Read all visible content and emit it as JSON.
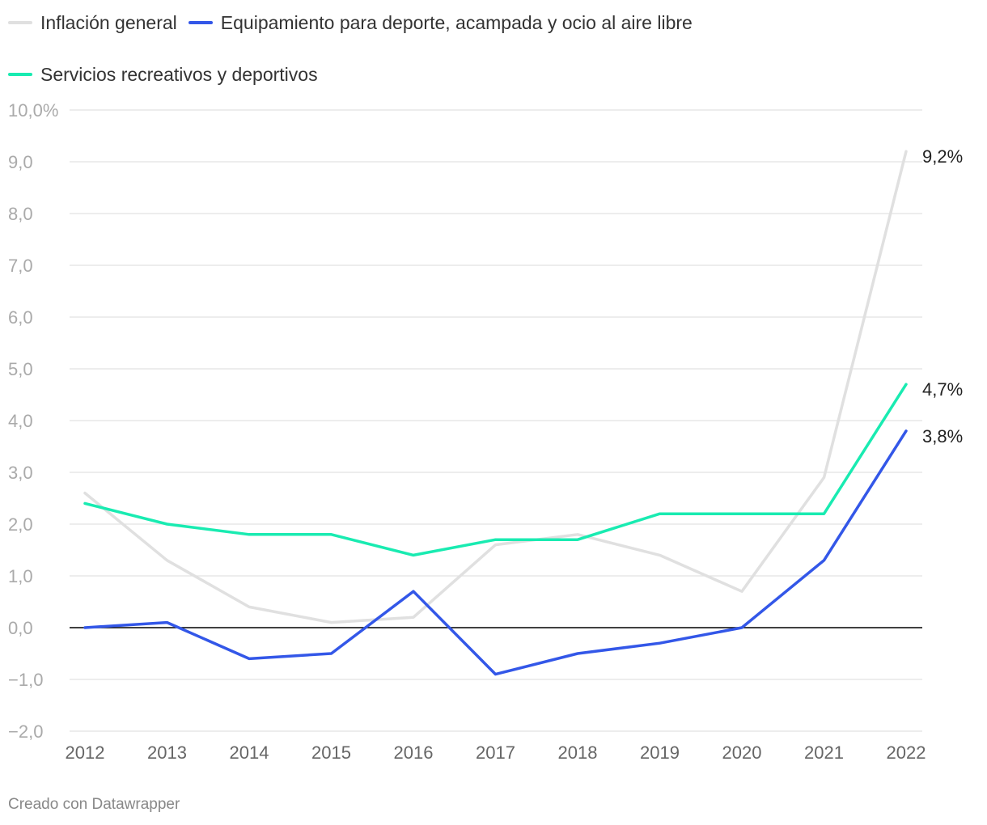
{
  "chart_data": {
    "type": "line",
    "x": [
      2012,
      2013,
      2014,
      2015,
      2016,
      2017,
      2018,
      2019,
      2020,
      2021,
      2022
    ],
    "series": [
      {
        "name": "Inflación general",
        "color": "#e0e0e0",
        "values": [
          2.6,
          1.3,
          0.4,
          0.1,
          0.2,
          1.6,
          1.8,
          1.4,
          0.7,
          2.9,
          9.2
        ],
        "end_label": "9,2%"
      },
      {
        "name": "Equipamiento para deporte, acampada y ocio al aire libre",
        "color": "#3357e8",
        "values": [
          0.0,
          0.1,
          -0.6,
          -0.5,
          0.7,
          -0.9,
          -0.5,
          -0.3,
          0.0,
          1.3,
          3.8
        ],
        "end_label": "3,8%"
      },
      {
        "name": "Servicios recreativos y deportivos",
        "color": "#19ebb1",
        "values": [
          2.4,
          2.0,
          1.8,
          1.8,
          1.4,
          1.7,
          1.7,
          2.2,
          2.2,
          2.2,
          4.7
        ],
        "end_label": "4,7%"
      }
    ],
    "ylim": [
      -2,
      10
    ],
    "y_ticks": [
      -2,
      -1,
      0,
      1,
      2,
      3,
      4,
      5,
      6,
      7,
      8,
      9,
      10
    ],
    "y_tick_labels": [
      "−2,0",
      "−1,0",
      "0,0",
      "1,0",
      "2,0",
      "3,0",
      "4,0",
      "5,0",
      "6,0",
      "7,0",
      "8,0",
      "9,0",
      "10,0%"
    ],
    "x_tick_labels": [
      "2012",
      "2013",
      "2014",
      "2015",
      "2016",
      "2017",
      "2018",
      "2019",
      "2020",
      "2021",
      "2022"
    ],
    "title": "",
    "xlabel": "",
    "ylabel": "",
    "grid": true,
    "legend_position": "top"
  },
  "credit": "Creado con Datawrapper"
}
